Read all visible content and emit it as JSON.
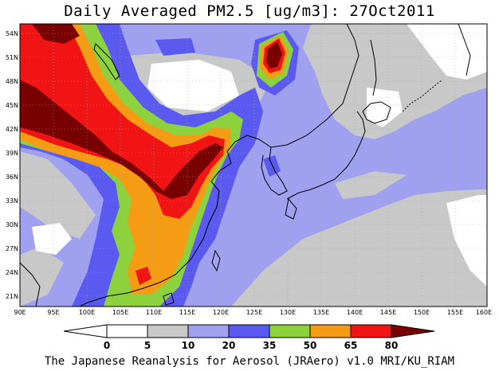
{
  "title": "Daily Averaged PM2.5 [ug/m3]: 27Oct2011",
  "footer": "The Japanese Reanalysis for Aerosol (JRAero) v1.0 MRI/KU_RIAM",
  "map": {
    "lon_range": [
      90,
      160
    ],
    "lat_range": [
      20,
      55
    ],
    "lat_ticks": [
      "54N",
      "51N",
      "48N",
      "45N",
      "42N",
      "39N",
      "36N",
      "33N",
      "30N",
      "27N",
      "24N",
      "21N"
    ],
    "lon_ticks": [
      "90E",
      "95E",
      "100E",
      "105E",
      "110E",
      "115E",
      "120E",
      "125E",
      "130E",
      "135E",
      "140E",
      "145E",
      "150E",
      "155E",
      "160E"
    ],
    "gridlines": true
  },
  "colorbar": {
    "ticks": [
      "0",
      "5",
      "10",
      "20",
      "35",
      "50",
      "65",
      "80"
    ],
    "colors": [
      "#ffffff",
      "#c8c8c8",
      "#a0a0f0",
      "#5a5af0",
      "#8cd23c",
      "#f59b14",
      "#f01414",
      "#780000"
    ],
    "extend": "both"
  }
}
